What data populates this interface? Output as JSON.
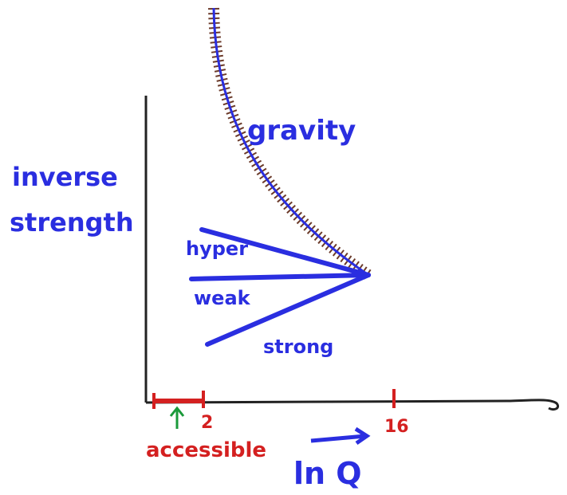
{
  "y_label": [
    "inverse",
    "strength"
  ],
  "curves": {
    "gravity": "gravity",
    "hyper": "hyper",
    "weak": "weak",
    "strong": "strong"
  },
  "x_ticks": [
    "2",
    "16"
  ],
  "range_label": "accessible",
  "x_label": "ln Q"
}
